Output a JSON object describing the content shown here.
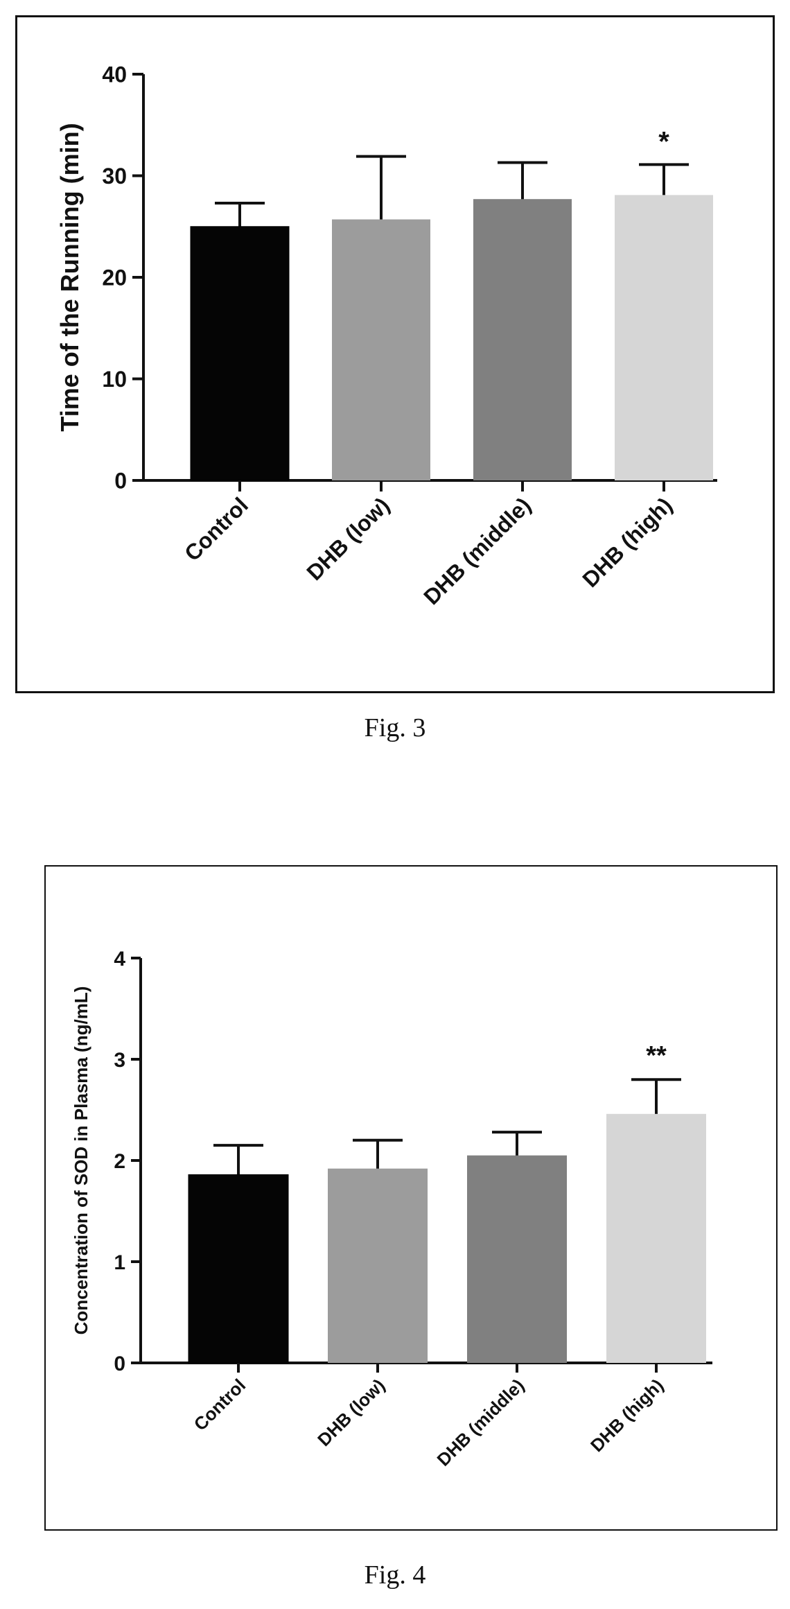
{
  "figures": [
    {
      "caption": "Fig. 3",
      "chart_data": {
        "type": "bar",
        "categories": [
          "Control",
          "DHB (low)",
          "DHB (middle)",
          "DHB (high)"
        ],
        "values": [
          25.0,
          25.7,
          27.7,
          28.1
        ],
        "error": [
          2.3,
          6.2,
          3.6,
          3.0
        ],
        "annotations": [
          "",
          "",
          "",
          "*"
        ],
        "title": "",
        "xlabel": "",
        "ylabel": "Time of the Running (min)",
        "ylim": [
          0,
          40
        ],
        "yticks": [
          0,
          10,
          20,
          30,
          40
        ],
        "colors": [
          "#050505",
          "#9c9c9c",
          "#808080",
          "#d6d6d6"
        ],
        "grid": false
      }
    },
    {
      "caption": "Fig. 4",
      "chart_data": {
        "type": "bar",
        "categories": [
          "Control",
          "DHB (low)",
          "DHB (middle)",
          "DHB (high)"
        ],
        "values": [
          1.86,
          1.92,
          2.05,
          2.46
        ],
        "error": [
          0.29,
          0.28,
          0.23,
          0.34
        ],
        "annotations": [
          "",
          "",
          "",
          "**"
        ],
        "title": "",
        "xlabel": "",
        "ylabel": "Concentration of SOD in Plasma (ng/mL)",
        "ylim": [
          0,
          4
        ],
        "yticks": [
          0,
          1,
          2,
          3,
          4
        ],
        "colors": [
          "#050505",
          "#9c9c9c",
          "#808080",
          "#d6d6d6"
        ],
        "grid": false
      }
    }
  ]
}
